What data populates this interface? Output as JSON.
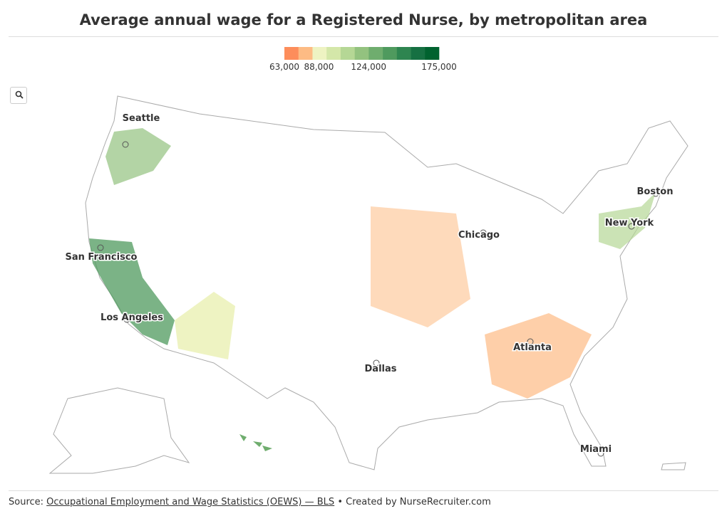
{
  "header": {
    "title": "Average annual wage for a Registered Nurse, by metropolitan area"
  },
  "legend": {
    "ticks": [
      {
        "value": 63000,
        "label": "63,000"
      },
      {
        "value": 88000,
        "label": "88,000"
      },
      {
        "value": 124000,
        "label": "124,000"
      },
      {
        "value": 175000,
        "label": "175,000"
      }
    ],
    "colors": [
      "#fd8d5b",
      "#fdbb84",
      "#eef3c2",
      "#d4e7a9",
      "#b5d795",
      "#93c27f",
      "#6fad6e",
      "#4f9a5e",
      "#2e8550",
      "#167042",
      "#00622f"
    ]
  },
  "cities": [
    "Seattle",
    "San Francisco",
    "Los Angeles",
    "Chicago",
    "New York",
    "Boston",
    "Atlanta",
    "Dallas",
    "Miami"
  ],
  "footer": {
    "prefix": "Source:",
    "link": "Occupational Employment and Wage Statistics (OEWS) — BLS",
    "suffix": "• Created by NurseRecruiter.com"
  }
}
